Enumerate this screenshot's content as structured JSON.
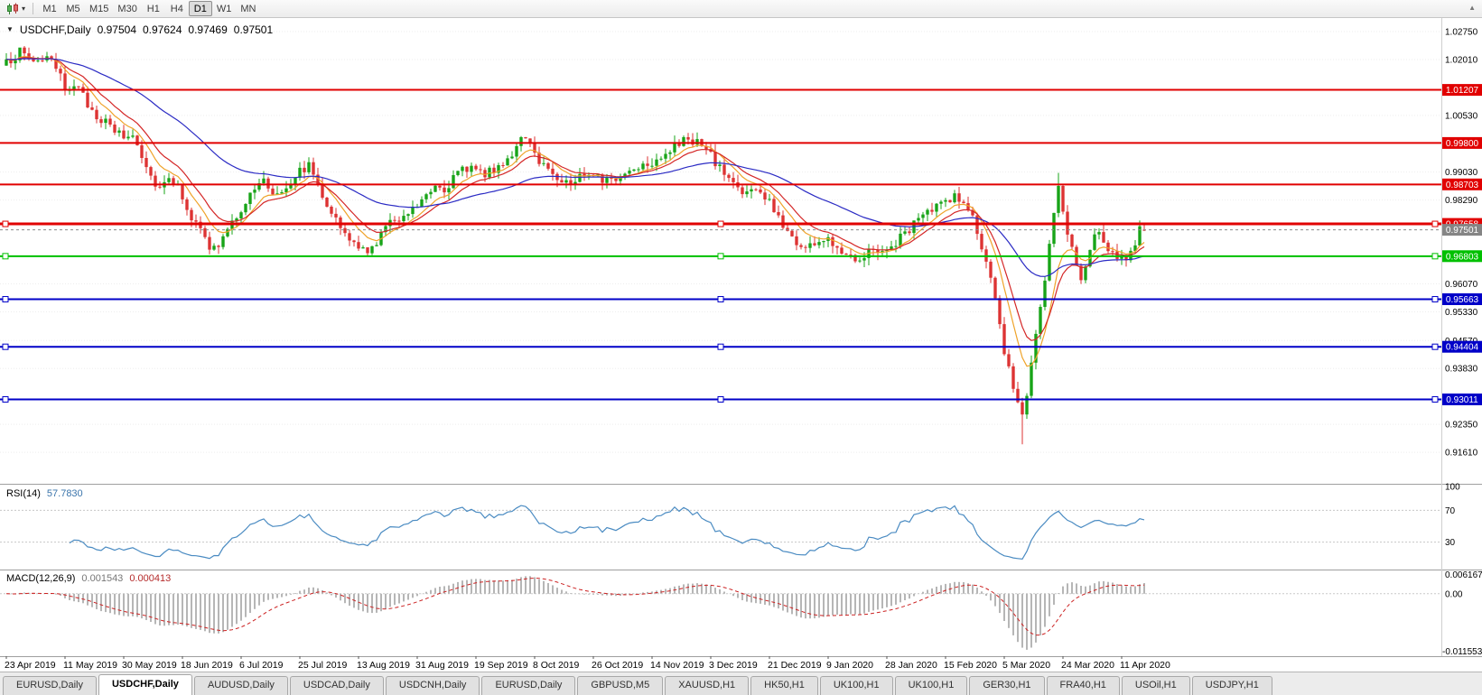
{
  "toolbar": {
    "timeframes": [
      "M1",
      "M5",
      "M15",
      "M30",
      "H1",
      "H4",
      "D1",
      "W1",
      "MN"
    ],
    "active": "D1"
  },
  "chart": {
    "symbol_label": "USDCHF,Daily",
    "open": "0.97504",
    "high": "0.97624",
    "low": "0.97469",
    "close": "0.97501"
  },
  "rsi_panel": {
    "name": "RSI(14)",
    "value": "57.7830"
  },
  "macd_panel": {
    "name": "MACD(12,26,9)",
    "value_main": "0.001543",
    "value_signal": "0.000413"
  },
  "tabs": [
    {
      "label": "EURUSD,Daily",
      "active": false
    },
    {
      "label": "USDCHF,Daily",
      "active": true
    },
    {
      "label": "AUDUSD,Daily",
      "active": false
    },
    {
      "label": "USDCAD,Daily",
      "active": false
    },
    {
      "label": "USDCNH,Daily",
      "active": false
    },
    {
      "label": "EURUSD,Daily",
      "active": false
    },
    {
      "label": "GBPUSD,M5",
      "active": false
    },
    {
      "label": "XAUUSD,H1",
      "active": false
    },
    {
      "label": "HK50,H1",
      "active": false
    },
    {
      "label": "UK100,H1",
      "active": false
    },
    {
      "label": "UK100,H1",
      "active": false
    },
    {
      "label": "GER30,H1",
      "active": false
    },
    {
      "label": "FRA40,H1",
      "active": false
    },
    {
      "label": "USOil,H1",
      "active": false
    },
    {
      "label": "USDJPY,H1",
      "active": false
    }
  ],
  "chart_data": {
    "type": "candlestick",
    "symbol": "USDCHF",
    "timeframe": "Daily",
    "last_ohlc": {
      "open": 0.97504,
      "high": 0.97624,
      "low": 0.97469,
      "close": 0.97501
    },
    "y_axis_ticks": [
      "1.02750",
      "1.02010",
      "1.00530",
      "0.99030",
      "0.98290",
      "0.96070",
      "0.95330",
      "0.94570",
      "0.93830",
      "0.92350",
      "0.91610"
    ],
    "x_axis_labels": [
      "23 Apr 2019",
      "11 May 2019",
      "30 May 2019",
      "18 Jun 2019",
      "6 Jul 2019",
      "25 Jul 2019",
      "13 Aug 2019",
      "31 Aug 2019",
      "19 Sep 2019",
      "8 Oct 2019",
      "26 Oct 2019",
      "14 Nov 2019",
      "3 Dec 2019",
      "21 Dec 2019",
      "9 Jan 2020",
      "28 Jan 2020",
      "15 Feb 2020",
      "5 Mar 2020",
      "24 Mar 2020",
      "11 Apr 2020"
    ],
    "hlines": [
      {
        "label": "1.01207",
        "value": 1.01207,
        "color": "#e10000",
        "width": 2,
        "handles": false
      },
      {
        "label": "0.99800",
        "value": 0.998,
        "color": "#e10000",
        "width": 2,
        "handles": false
      },
      {
        "label": "0.98703",
        "value": 0.98703,
        "color": "#e10000",
        "width": 2,
        "handles": false
      },
      {
        "label": "0.97658",
        "value": 0.97658,
        "color": "#e10000",
        "width": 3,
        "handles": true
      },
      {
        "label": "0.96803",
        "value": 0.96803,
        "color": "#00c000",
        "width": 2,
        "handles": true
      },
      {
        "label": "0.95663",
        "value": 0.95663,
        "color": "#0000c8",
        "width": 2,
        "handles": true
      },
      {
        "label": "0.94404",
        "value": 0.94404,
        "color": "#0000c8",
        "width": 2,
        "handles": true
      },
      {
        "label": "0.93011",
        "value": 0.93011,
        "color": "#0000c8",
        "width": 2,
        "handles": true
      }
    ],
    "current_price": {
      "label": "0.97501",
      "value": 0.97501,
      "color": "#858585"
    },
    "candles": {
      "count": 253,
      "per_label": 13,
      "first_open": 1.0185,
      "noise": 0.0013,
      "wick": 0.002,
      "seed": 987654321,
      "bull_color": "#18a418",
      "bear_color": "#dd3333",
      "anchors": [
        [
          0,
          1.019
        ],
        [
          3,
          1.0222
        ],
        [
          6,
          1.0198
        ],
        [
          9,
          1.0208
        ],
        [
          12,
          1.0152
        ],
        [
          13,
          1.0125
        ],
        [
          15,
          1.0138
        ],
        [
          18,
          1.0082
        ],
        [
          21,
          1.0042
        ],
        [
          24,
          1.0012
        ],
        [
          26,
          0.9996
        ],
        [
          28,
          1.0002
        ],
        [
          30,
          0.9952
        ],
        [
          32,
          0.9892
        ],
        [
          34,
          0.9862
        ],
        [
          36,
          0.9896
        ],
        [
          39,
          0.9842
        ],
        [
          41,
          0.9782
        ],
        [
          43,
          0.9747
        ],
        [
          45,
          0.9702
        ],
        [
          47,
          0.9707
        ],
        [
          49,
          0.9747
        ],
        [
          52,
          0.9807
        ],
        [
          55,
          0.9857
        ],
        [
          57,
          0.9882
        ],
        [
          59,
          0.9847
        ],
        [
          61,
          0.9857
        ],
        [
          63,
          0.9882
        ],
        [
          65,
          0.9907
        ],
        [
          67,
          0.9921
        ],
        [
          69,
          0.9872
        ],
        [
          71,
          0.9822
        ],
        [
          73,
          0.9777
        ],
        [
          75,
          0.9732
        ],
        [
          78,
          0.9707
        ],
        [
          80,
          0.9682
        ],
        [
          82,
          0.9722
        ],
        [
          84,
          0.9757
        ],
        [
          86,
          0.9777
        ],
        [
          88,
          0.9792
        ],
        [
          91,
          0.9817
        ],
        [
          93,
          0.9852
        ],
        [
          95,
          0.9872
        ],
        [
          97,
          0.9857
        ],
        [
          99,
          0.9887
        ],
        [
          101,
          0.9907
        ],
        [
          104,
          0.9922
        ],
        [
          106,
          0.9897
        ],
        [
          108,
          0.9907
        ],
        [
          110,
          0.9932
        ],
        [
          112,
          0.9952
        ],
        [
          114,
          0.9987
        ],
        [
          116,
          0.9972
        ],
        [
          117,
          0.9952
        ],
        [
          119,
          0.9922
        ],
        [
          121,
          0.9902
        ],
        [
          123,
          0.9882
        ],
        [
          125,
          0.9872
        ],
        [
          127,
          0.9892
        ],
        [
          130,
          0.9907
        ],
        [
          132,
          0.9887
        ],
        [
          134,
          0.9877
        ],
        [
          136,
          0.9892
        ],
        [
          138,
          0.9907
        ],
        [
          140,
          0.9922
        ],
        [
          143,
          0.9932
        ],
        [
          145,
          0.9947
        ],
        [
          147,
          0.9962
        ],
        [
          149,
          0.9977
        ],
        [
          151,
          0.9992
        ],
        [
          153,
          0.9982
        ],
        [
          156,
          0.9947
        ],
        [
          158,
          0.9912
        ],
        [
          160,
          0.9887
        ],
        [
          162,
          0.9862
        ],
        [
          164,
          0.9847
        ],
        [
          166,
          0.9857
        ],
        [
          169,
          0.9822
        ],
        [
          171,
          0.9782
        ],
        [
          173,
          0.9747
        ],
        [
          175,
          0.9717
        ],
        [
          177,
          0.9702
        ],
        [
          179,
          0.9717
        ],
        [
          182,
          0.9722
        ],
        [
          184,
          0.9707
        ],
        [
          186,
          0.9692
        ],
        [
          188,
          0.9677
        ],
        [
          190,
          0.9682
        ],
        [
          192,
          0.9702
        ],
        [
          195,
          0.9692
        ],
        [
          197,
          0.9717
        ],
        [
          199,
          0.9742
        ],
        [
          201,
          0.9767
        ],
        [
          203,
          0.9787
        ],
        [
          205,
          0.9802
        ],
        [
          208,
          0.9827
        ],
        [
          210,
          0.9842
        ],
        [
          212,
          0.9817
        ],
        [
          214,
          0.9782
        ],
        [
          216,
          0.9702
        ],
        [
          218,
          0.9612
        ],
        [
          220,
          0.9502
        ],
        [
          221,
          0.9432
        ],
        [
          223,
          0.9342
        ],
        [
          225,
          0.9262
        ],
        [
          226,
          0.9302
        ],
        [
          227,
          0.9392
        ],
        [
          228,
          0.9462
        ],
        [
          229,
          0.9542
        ],
        [
          230,
          0.9622
        ],
        [
          231,
          0.9702
        ],
        [
          232,
          0.9802
        ],
        [
          233,
          0.9862
        ],
        [
          234,
          0.9792
        ],
        [
          235,
          0.9742
        ],
        [
          236,
          0.9702
        ],
        [
          237,
          0.9652
        ],
        [
          238,
          0.9612
        ],
        [
          239,
          0.9652
        ],
        [
          240,
          0.9692
        ],
        [
          241,
          0.9727
        ],
        [
          242,
          0.9752
        ],
        [
          243,
          0.9722
        ],
        [
          244,
          0.9702
        ],
        [
          245,
          0.9687
        ],
        [
          247,
          0.9677
        ],
        [
          249,
          0.9682
        ],
        [
          250,
          0.9702
        ],
        [
          251,
          0.9747
        ],
        [
          252,
          0.97501
        ]
      ],
      "forced": [
        {
          "i": 3,
          "h": 1.0226
        },
        {
          "i": 225,
          "l": 0.9182
        },
        {
          "i": 233,
          "h": 0.9901
        },
        {
          "i": 251,
          "h": 0.9775
        }
      ]
    },
    "moving_averages": [
      {
        "period": 8,
        "color": "#efa32a"
      },
      {
        "period": 13,
        "color": "#d42626"
      },
      {
        "period": 45,
        "color": "#2b2bc4"
      }
    ],
    "rsi": {
      "period": 14,
      "color": "#4a8bc2",
      "levels": [
        70,
        30
      ],
      "axis_labels": [
        {
          "label": "100",
          "value": 100
        },
        {
          "label": "70",
          "value": 70
        },
        {
          "label": "30",
          "value": 30
        }
      ]
    },
    "macd": {
      "fast": 12,
      "slow": 26,
      "signal": 9,
      "hist_color": "#b6b6b6",
      "signal_color": "#cc2222",
      "axis_top": "0.006167",
      "axis_zero": "0.00",
      "axis_bottom": "-0.011553"
    }
  }
}
